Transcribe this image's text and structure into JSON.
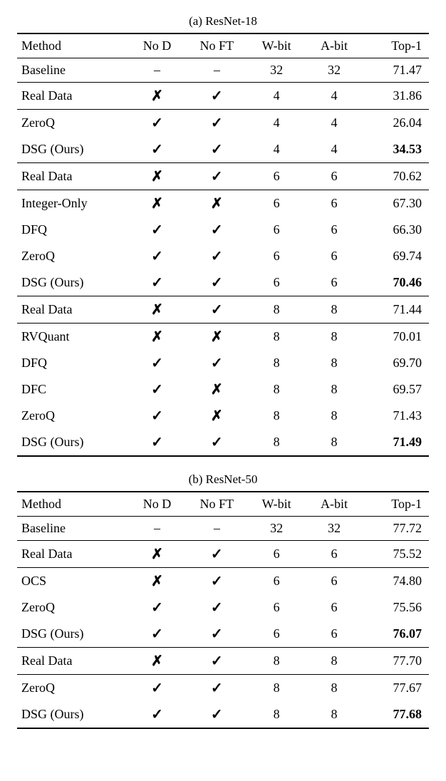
{
  "tables": [
    {
      "caption": "(a) ResNet-18",
      "columns": [
        "Method",
        "No D",
        "No FT",
        "W-bit",
        "A-bit",
        "Top-1"
      ],
      "groups": [
        {
          "type": "head"
        },
        {
          "rows": [
            {
              "method": "Baseline",
              "nod": "–",
              "noft": "–",
              "wbit": "32",
              "abit": "32",
              "top1": "71.47"
            }
          ]
        },
        {
          "rows": [
            {
              "method": "Real Data",
              "nod": "cross",
              "noft": "check",
              "wbit": "4",
              "abit": "4",
              "top1": "31.86"
            }
          ]
        },
        {
          "rows": [
            {
              "method": "ZeroQ",
              "nod": "check",
              "noft": "check",
              "wbit": "4",
              "abit": "4",
              "top1": "26.04"
            },
            {
              "method": "DSG (Ours)",
              "nod": "check",
              "noft": "check",
              "wbit": "4",
              "abit": "4",
              "top1": "34.53",
              "bold": true
            }
          ]
        },
        {
          "rows": [
            {
              "method": "Real Data",
              "nod": "cross",
              "noft": "check",
              "wbit": "6",
              "abit": "6",
              "top1": "70.62"
            }
          ]
        },
        {
          "rows": [
            {
              "method": "Integer-Only",
              "nod": "cross",
              "noft": "cross",
              "wbit": "6",
              "abit": "6",
              "top1": "67.30"
            },
            {
              "method": "DFQ",
              "nod": "check",
              "noft": "check",
              "wbit": "6",
              "abit": "6",
              "top1": "66.30"
            },
            {
              "method": "ZeroQ",
              "nod": "check",
              "noft": "check",
              "wbit": "6",
              "abit": "6",
              "top1": "69.74"
            },
            {
              "method": "DSG (Ours)",
              "nod": "check",
              "noft": "check",
              "wbit": "6",
              "abit": "6",
              "top1": "70.46",
              "bold": true
            }
          ]
        },
        {
          "rows": [
            {
              "method": "Real Data",
              "nod": "cross",
              "noft": "check",
              "wbit": "8",
              "abit": "8",
              "top1": "71.44"
            }
          ]
        },
        {
          "rows": [
            {
              "method": "RVQuant",
              "nod": "cross",
              "noft": "cross",
              "wbit": "8",
              "abit": "8",
              "top1": "70.01"
            },
            {
              "method": "DFQ",
              "nod": "check",
              "noft": "check",
              "wbit": "8",
              "abit": "8",
              "top1": "69.70"
            },
            {
              "method": "DFC",
              "nod": "check",
              "noft": "cross",
              "wbit": "8",
              "abit": "8",
              "top1": "69.57"
            },
            {
              "method": "ZeroQ",
              "nod": "check",
              "noft": "cross",
              "wbit": "8",
              "abit": "8",
              "top1": "71.43"
            },
            {
              "method": "DSG (Ours)",
              "nod": "check",
              "noft": "check",
              "wbit": "8",
              "abit": "8",
              "top1": "71.49",
              "bold": true
            }
          ]
        }
      ]
    },
    {
      "caption": "(b) ResNet-50",
      "columns": [
        "Method",
        "No D",
        "No FT",
        "W-bit",
        "A-bit",
        "Top-1"
      ],
      "groups": [
        {
          "type": "head"
        },
        {
          "rows": [
            {
              "method": "Baseline",
              "nod": "–",
              "noft": "–",
              "wbit": "32",
              "abit": "32",
              "top1": "77.72"
            }
          ]
        },
        {
          "rows": [
            {
              "method": "Real Data",
              "nod": "cross",
              "noft": "check",
              "wbit": "6",
              "abit": "6",
              "top1": "75.52"
            }
          ]
        },
        {
          "rows": [
            {
              "method": "OCS",
              "nod": "cross",
              "noft": "check",
              "wbit": "6",
              "abit": "6",
              "top1": "74.80"
            },
            {
              "method": "ZeroQ",
              "nod": "check",
              "noft": "check",
              "wbit": "6",
              "abit": "6",
              "top1": "75.56"
            },
            {
              "method": "DSG (Ours)",
              "nod": "check",
              "noft": "check",
              "wbit": "6",
              "abit": "6",
              "top1": "76.07",
              "bold": true
            }
          ]
        },
        {
          "rows": [
            {
              "method": "Real Data",
              "nod": "cross",
              "noft": "check",
              "wbit": "8",
              "abit": "8",
              "top1": "77.70"
            }
          ]
        },
        {
          "rows": [
            {
              "method": "ZeroQ",
              "nod": "check",
              "noft": "check",
              "wbit": "8",
              "abit": "8",
              "top1": "77.67"
            },
            {
              "method": "DSG (Ours)",
              "nod": "check",
              "noft": "check",
              "wbit": "8",
              "abit": "8",
              "top1": "77.68",
              "bold": true
            }
          ]
        }
      ]
    }
  ]
}
